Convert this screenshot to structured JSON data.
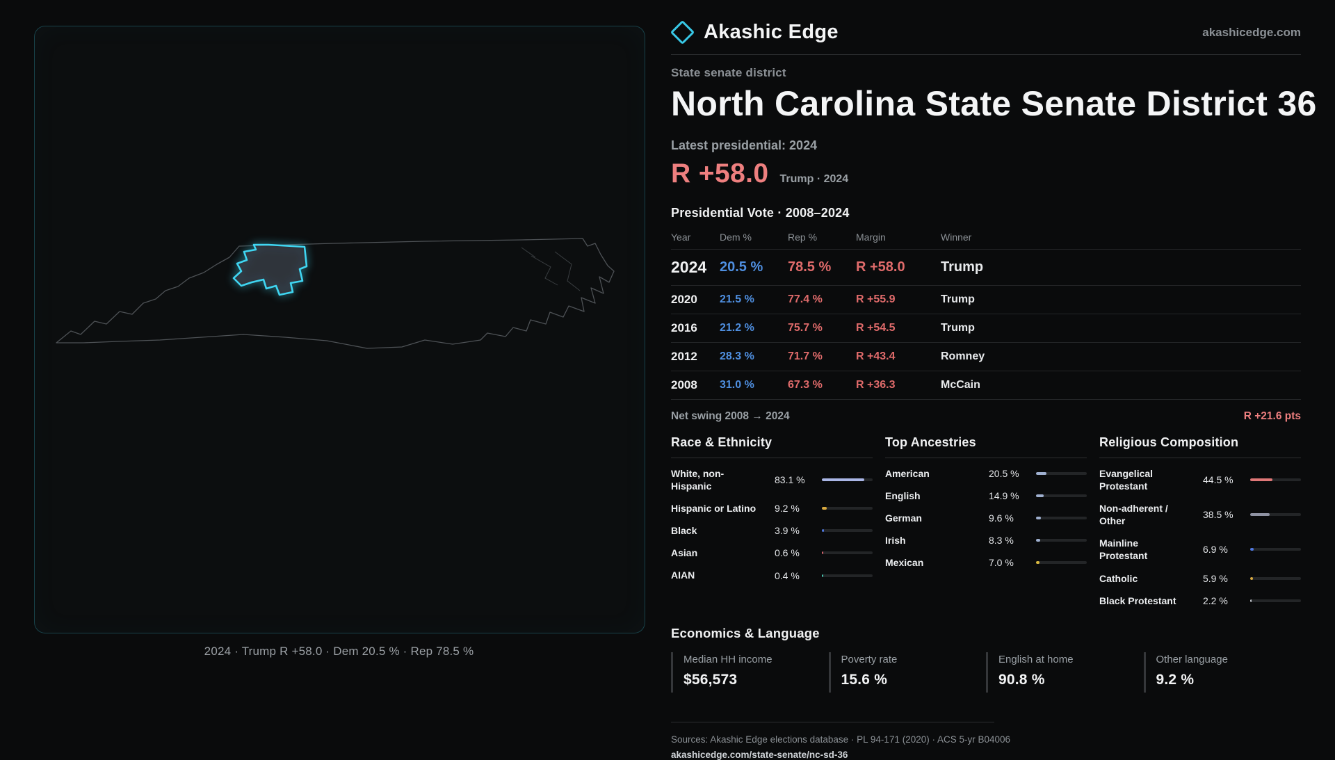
{
  "page": {
    "background": "#0a0b0c"
  },
  "colors": {
    "accent_cyan": "#3fd6f2",
    "republican_red": "#e06b6b",
    "democrat_blue": "#4f8fe0",
    "margin_salmon": "#ee7f7f",
    "muted_text": "#8b9095",
    "bar_track": "#232527"
  },
  "map": {
    "caption": "2024 · Trump R +58.0 · Dem 20.5 % · Rep 78.5 %",
    "highlighted_district": "NC State Senate District 36"
  },
  "header": {
    "brand": "Akashic Edge",
    "site_link": "akashicedge.com"
  },
  "district": {
    "kicker": "State senate district",
    "title": "North Carolina State Senate District 36",
    "latest_label": "Latest presidential: 2024",
    "headline_margin": "R +58.0",
    "headline_context": "Trump · 2024"
  },
  "vote_table": {
    "title": "Presidential Vote · 2008–2024",
    "columns": [
      "Year",
      "Dem %",
      "Rep %",
      "Margin",
      "Winner"
    ],
    "rows": [
      {
        "year": "2024",
        "dem": "20.5 %",
        "rep": "78.5 %",
        "margin": "R +58.0",
        "winner": "Trump",
        "featured": true
      },
      {
        "year": "2020",
        "dem": "21.5 %",
        "rep": "77.4 %",
        "margin": "R +55.9",
        "winner": "Trump",
        "featured": false
      },
      {
        "year": "2016",
        "dem": "21.2 %",
        "rep": "75.7 %",
        "margin": "R +54.5",
        "winner": "Trump",
        "featured": false
      },
      {
        "year": "2012",
        "dem": "28.3 %",
        "rep": "71.7 %",
        "margin": "R +43.4",
        "winner": "Romney",
        "featured": false
      },
      {
        "year": "2008",
        "dem": "31.0 %",
        "rep": "67.3 %",
        "margin": "R +36.3",
        "winner": "McCain",
        "featured": false
      }
    ]
  },
  "net_swing": {
    "label": "Net swing 2008 → 2024",
    "value": "R +21.6 pts"
  },
  "demographics": {
    "groups": [
      {
        "title": "Race & Ethnicity",
        "rows": [
          {
            "label": "White, non-Hispanic",
            "value": "83.1 %",
            "pct": 83.1,
            "color": "#aab6e6"
          },
          {
            "label": "Hispanic or Latino",
            "value": "9.2 %",
            "pct": 9.2,
            "color": "#d9a93f"
          },
          {
            "label": "Black",
            "value": "3.9 %",
            "pct": 3.9,
            "color": "#4f78e0"
          },
          {
            "label": "Asian",
            "value": "0.6 %",
            "pct": 0.6,
            "color": "#d9646c"
          },
          {
            "label": "AIAN",
            "value": "0.4 %",
            "pct": 0.4,
            "color": "#46c8b2"
          }
        ]
      },
      {
        "title": "Top Ancestries",
        "rows": [
          {
            "label": "American",
            "value": "20.5 %",
            "pct": 20.5,
            "color": "#9fb0d0"
          },
          {
            "label": "English",
            "value": "14.9 %",
            "pct": 14.9,
            "color": "#9fb0d0"
          },
          {
            "label": "German",
            "value": "9.6 %",
            "pct": 9.6,
            "color": "#9fb0d0"
          },
          {
            "label": "Irish",
            "value": "8.3 %",
            "pct": 8.3,
            "color": "#9fb0d0"
          },
          {
            "label": "Mexican",
            "value": "7.0 %",
            "pct": 7.0,
            "color": "#d9b93f"
          }
        ]
      },
      {
        "title": "Religious Composition",
        "rows": [
          {
            "label": "Evangelical Protestant",
            "value": "44.5 %",
            "pct": 44.5,
            "color": "#e07878"
          },
          {
            "label": "Non-adherent / Other",
            "value": "38.5 %",
            "pct": 38.5,
            "color": "#8f93a3"
          },
          {
            "label": "Mainline Protestant",
            "value": "6.9 %",
            "pct": 6.9,
            "color": "#4f78e0"
          },
          {
            "label": "Catholic",
            "value": "5.9 %",
            "pct": 5.9,
            "color": "#d9a93f"
          },
          {
            "label": "Black Protestant",
            "value": "2.2 %",
            "pct": 2.2,
            "color": "#c8ccd4"
          }
        ]
      }
    ]
  },
  "economics": {
    "title": "Economics & Language",
    "stats": [
      {
        "label": "Median HH income",
        "value": "$56,573"
      },
      {
        "label": "Poverty rate",
        "value": "15.6 %"
      },
      {
        "label": "English at home",
        "value": "90.8 %"
      },
      {
        "label": "Other language",
        "value": "9.2 %"
      }
    ]
  },
  "footer": {
    "sources": "Sources: Akashic Edge elections database · PL 94-171 (2020) · ACS 5-yr B04006",
    "url": "akashicedge.com/state-senate/nc-sd-36"
  }
}
